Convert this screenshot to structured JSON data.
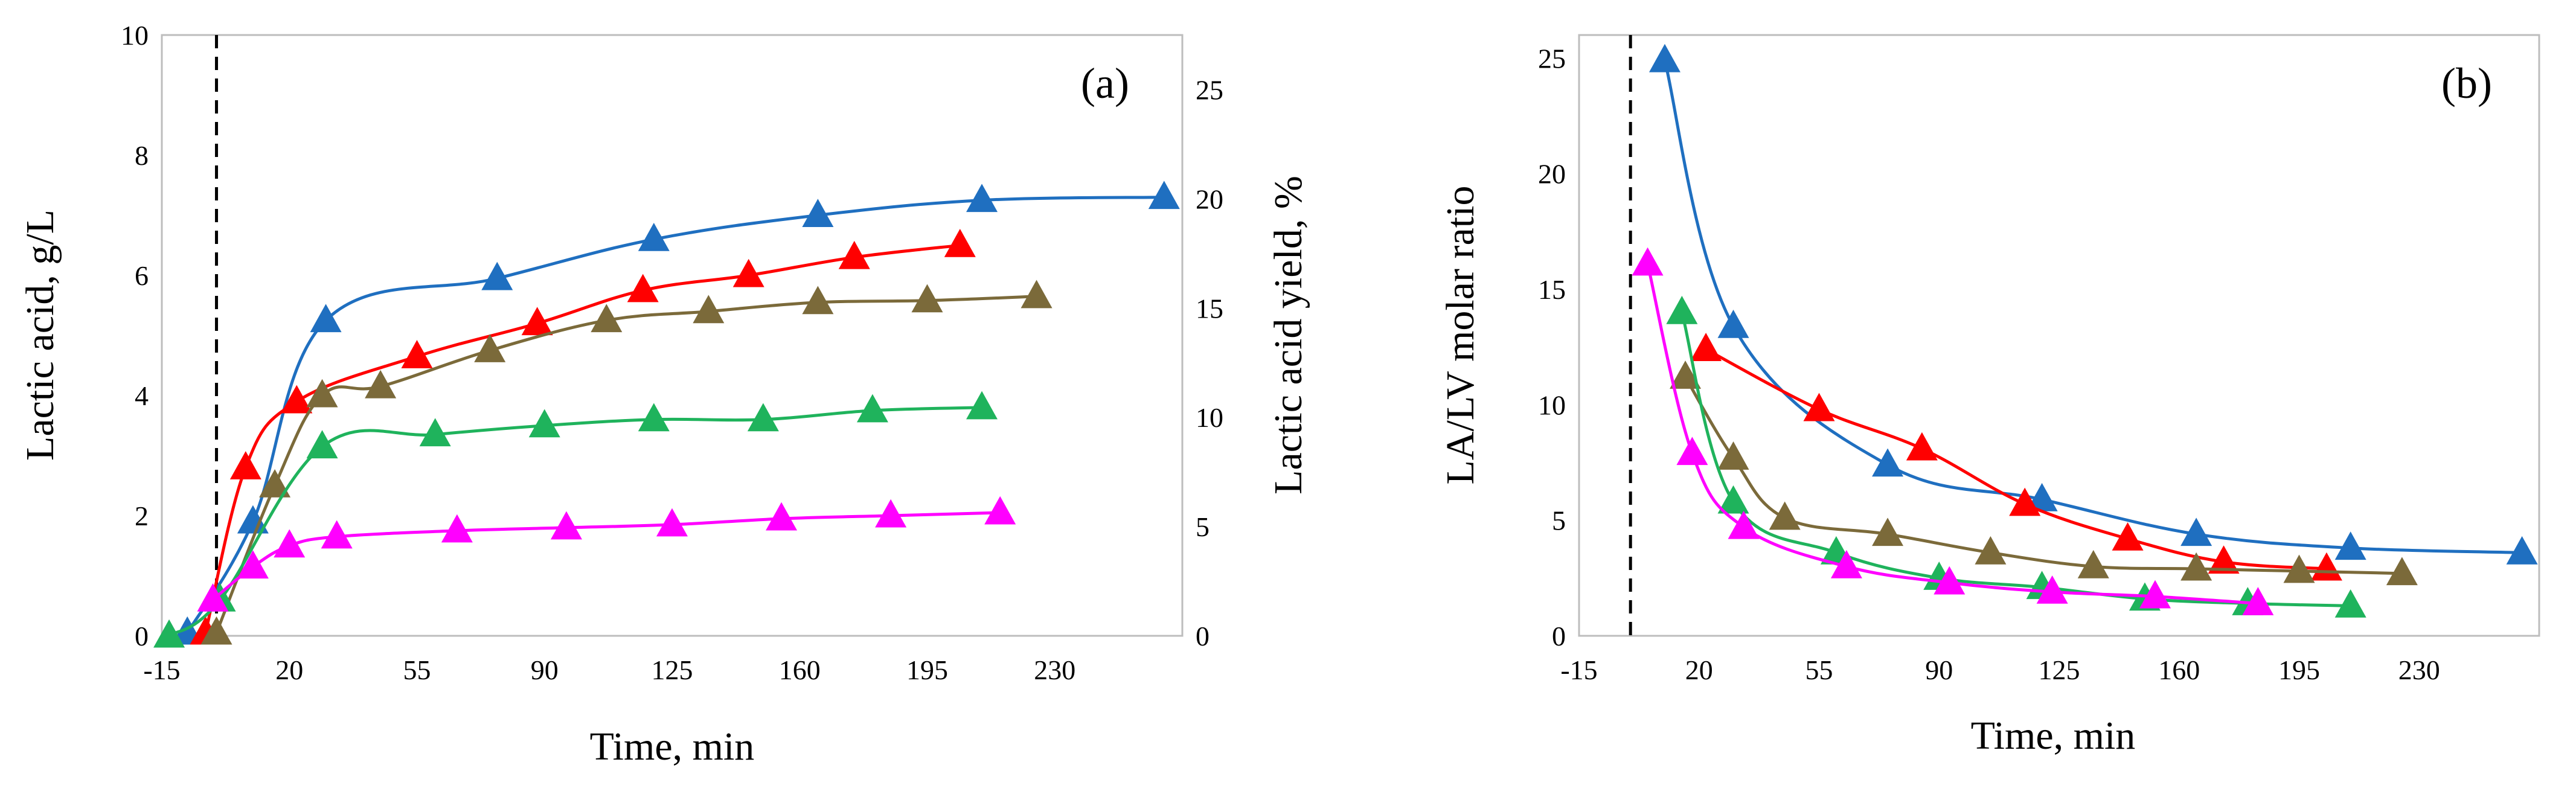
{
  "chart_data": [
    {
      "type": "line",
      "panel_label": "(a)",
      "xlabel": "Time, min",
      "ylabel": "Lactic acid, g/L",
      "y2label": "Lactic acid yield, %",
      "xticks": [
        "-15",
        "20",
        "55",
        "90",
        "125",
        "160",
        "195",
        "230"
      ],
      "yticks": [
        "0",
        "2",
        "4",
        "6",
        "8",
        "10"
      ],
      "y2ticks": [
        "0",
        "5",
        "10",
        "15",
        "20",
        "25"
      ],
      "xlim": [
        -15,
        265
      ],
      "ylim": [
        0,
        10
      ],
      "y2lim": [
        0,
        27.5
      ],
      "vline_x": 0,
      "series": [
        {
          "name": "blue",
          "color": "#1f6fc0",
          "x": [
            -8,
            10,
            30,
            77,
            120,
            165,
            210,
            260
          ],
          "y": [
            0.05,
            1.9,
            5.25,
            5.95,
            6.6,
            7.0,
            7.25,
            7.3
          ]
        },
        {
          "name": "red",
          "color": "#ff0000",
          "x": [
            -3,
            8,
            22,
            55,
            88,
            117,
            146,
            175,
            204
          ],
          "y": [
            0.05,
            2.8,
            3.9,
            4.65,
            5.2,
            5.75,
            6.0,
            6.3,
            6.5
          ]
        },
        {
          "name": "olive",
          "color": "#7b6a3a",
          "x": [
            0,
            16,
            29,
            45,
            75,
            107,
            135,
            165,
            195,
            225
          ],
          "y": [
            0.05,
            2.5,
            4.0,
            4.15,
            4.75,
            5.25,
            5.4,
            5.55,
            5.58,
            5.65
          ]
        },
        {
          "name": "green",
          "color": "#1fb35c",
          "x": [
            -13,
            1,
            29,
            60,
            90,
            120,
            150,
            180,
            210
          ],
          "y": [
            0.0,
            0.6,
            3.15,
            3.35,
            3.5,
            3.6,
            3.6,
            3.75,
            3.8
          ]
        },
        {
          "name": "magenta",
          "color": "#ff00ff",
          "x": [
            -1,
            10,
            20,
            33,
            66,
            96,
            125,
            155,
            185,
            215
          ],
          "y": [
            0.6,
            1.15,
            1.5,
            1.65,
            1.75,
            1.8,
            1.85,
            1.95,
            2.0,
            2.05
          ]
        }
      ]
    },
    {
      "type": "line",
      "panel_label": "(b)",
      "xlabel": "Time, min",
      "ylabel": "LA/LV  molar ratio",
      "xticks": [
        "-15",
        "20",
        "55",
        "90",
        "125",
        "160",
        "195",
        "230"
      ],
      "yticks": [
        "0",
        "5",
        "10",
        "15",
        "20",
        "25"
      ],
      "xlim": [
        -15,
        265
      ],
      "ylim": [
        0,
        26
      ],
      "vline_x": 0,
      "series": [
        {
          "name": "blue",
          "color": "#1f6fc0",
          "x": [
            10,
            30,
            75,
            120,
            165,
            210,
            260
          ],
          "y": [
            24.9,
            13.4,
            7.4,
            5.9,
            4.4,
            3.8,
            3.6
          ]
        },
        {
          "name": "red",
          "color": "#ff0000",
          "x": [
            22,
            55,
            85,
            115,
            145,
            173,
            203
          ],
          "y": [
            12.4,
            9.8,
            8.1,
            5.7,
            4.2,
            3.2,
            2.9
          ]
        },
        {
          "name": "olive",
          "color": "#7b6a3a",
          "x": [
            16,
            30,
            45,
            75,
            105,
            135,
            165,
            195,
            225
          ],
          "y": [
            11.2,
            7.7,
            5.1,
            4.4,
            3.6,
            3.0,
            2.9,
            2.8,
            2.7
          ]
        },
        {
          "name": "green",
          "color": "#1fb35c",
          "x": [
            15,
            30,
            60,
            90,
            120,
            150,
            180,
            210
          ],
          "y": [
            14.0,
            5.8,
            3.6,
            2.5,
            2.1,
            1.6,
            1.4,
            1.3
          ]
        },
        {
          "name": "magenta",
          "color": "#ff00ff",
          "x": [
            5,
            18,
            33,
            63,
            93,
            123,
            153,
            183
          ],
          "y": [
            16.1,
            7.9,
            4.7,
            3.0,
            2.3,
            1.9,
            1.7,
            1.4
          ]
        }
      ]
    }
  ]
}
